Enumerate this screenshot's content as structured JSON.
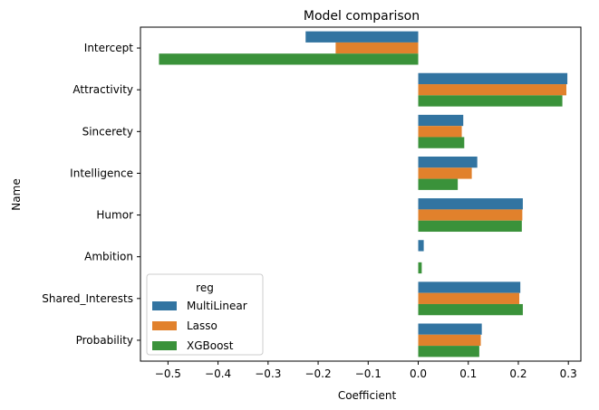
{
  "chart_data": {
    "type": "bar",
    "orientation": "horizontal",
    "title": "Model comparison",
    "xlabel": "Coefficient",
    "ylabel": "Name",
    "xlim": [
      -0.555,
      0.325
    ],
    "xticks": [
      -0.5,
      -0.4,
      -0.3,
      -0.2,
      -0.1,
      0.0,
      0.1,
      0.2,
      0.3
    ],
    "xtick_labels": [
      "−0.5",
      "−0.4",
      "−0.3",
      "−0.2",
      "−0.1",
      "0.0",
      "0.1",
      "0.2",
      "0.3"
    ],
    "grid": false,
    "categories": [
      "Intercept",
      "Attractivity",
      "Sincerety",
      "Intelligence",
      "Humor",
      "Ambition",
      "Shared_Interests",
      "Probability"
    ],
    "series": [
      {
        "name": "MultiLinear",
        "color": "#3274a1",
        "values": [
          -0.225,
          0.298,
          0.09,
          0.118,
          0.209,
          0.011,
          0.204,
          0.127
        ]
      },
      {
        "name": "Lasso",
        "color": "#e1812c",
        "values": [
          -0.165,
          0.296,
          0.087,
          0.107,
          0.208,
          0.0,
          0.202,
          0.125
        ]
      },
      {
        "name": "XGBoost",
        "color": "#3a923a",
        "values": [
          -0.518,
          0.288,
          0.092,
          0.079,
          0.207,
          0.007,
          0.209,
          0.122
        ]
      }
    ],
    "legend": {
      "title": "reg",
      "position": "lower-left",
      "labels": [
        "MultiLinear",
        "Lasso",
        "XGBoost"
      ]
    }
  }
}
